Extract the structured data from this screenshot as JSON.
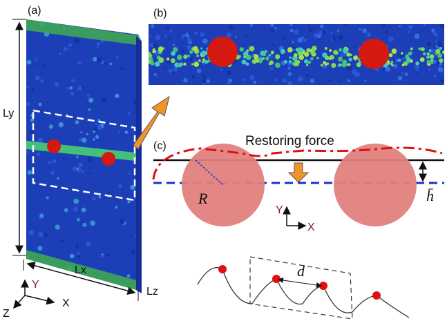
{
  "panels": {
    "a": {
      "label": "(a)",
      "ly": "Ly",
      "lx": "Lx",
      "lz": "Lz",
      "axis_y": "Y",
      "axis_x": "X",
      "axis_z": "Z"
    },
    "b": {
      "label": "(b)"
    },
    "c": {
      "label": "(c)",
      "annotation": "Restoring force",
      "radius": "R",
      "height": "h̄",
      "axis_y": "Y",
      "axis_x": "X",
      "spacing": "d"
    }
  }
}
